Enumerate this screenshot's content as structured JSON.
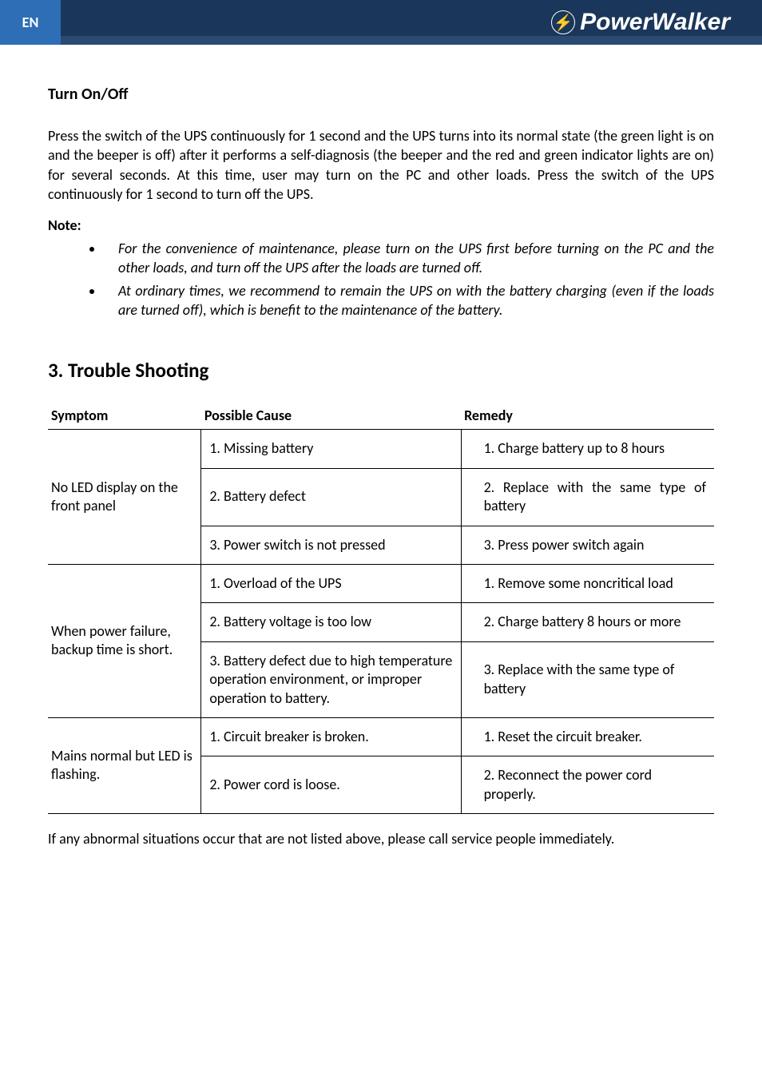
{
  "header": {
    "lang_tab": "EN",
    "logo_text": "PowerWalker",
    "logo_glyph": "⚡"
  },
  "turn_onoff": {
    "heading": "Turn On/Off",
    "paragraph": "Press the switch of the UPS continuously for 1 second and the UPS turns into its normal state (the green light is on and the beeper is off) after it performs a self-diagnosis (the beeper and the red and green indicator lights are on) for several seconds. At this time, user may turn on the PC and other loads. Press the switch of the UPS continuously for 1 second to turn off the UPS.",
    "note_label": "Note:",
    "notes": [
      "For the convenience of maintenance, please turn on the UPS first before turning on the PC and the other loads, and turn off the UPS after the loads are turned off.",
      "At ordinary times, we recommend to remain the UPS on with the battery charging (even if the loads are turned off), which is benefit to the maintenance of the battery."
    ]
  },
  "trouble": {
    "heading": "3.   Trouble Shooting",
    "columns": {
      "symptom": "Symptom",
      "cause": "Possible Cause",
      "remedy": "Remedy"
    },
    "groups": [
      {
        "symptom": "No LED display on the front panel",
        "rows": [
          {
            "cause": "1. Missing battery",
            "remedy": "1. Charge battery up to 8 hours",
            "remedy_justify": false
          },
          {
            "cause": "2. Battery defect",
            "remedy": "2. Replace with the same type of  battery",
            "remedy_justify": true
          },
          {
            "cause": "3. Power switch is not pressed",
            "remedy": "3. Press power switch again",
            "remedy_justify": false
          }
        ]
      },
      {
        "symptom": "When power failure, backup time is short.",
        "rows": [
          {
            "cause": "1. Overload of the UPS",
            "remedy": "1. Remove some noncritical load",
            "remedy_justify": false
          },
          {
            "cause": "2. Battery voltage is too low",
            "remedy": "2. Charge battery 8 hours or more",
            "remedy_justify": false
          },
          {
            "cause": "3. Battery defect due to high temperature operation environment, or improper operation to battery.",
            "remedy": "3. Replace with the same type of battery",
            "remedy_justify": false
          }
        ]
      },
      {
        "symptom": "Mains  normal  but LED is flashing.",
        "rows": [
          {
            "cause": "1. Circuit breaker is broken.",
            "remedy": "1. Reset the circuit breaker.",
            "remedy_justify": false
          },
          {
            "cause": "2. Power cord is loose.",
            "remedy": "2. Reconnect the power cord properly.",
            "remedy_justify": false
          }
        ]
      }
    ],
    "footer": "If any abnormal situations occur that are not listed above, please call service people immediately."
  },
  "colors": {
    "tab_bg": "#2e6eb6",
    "stripe_bg": "#1a365a"
  }
}
